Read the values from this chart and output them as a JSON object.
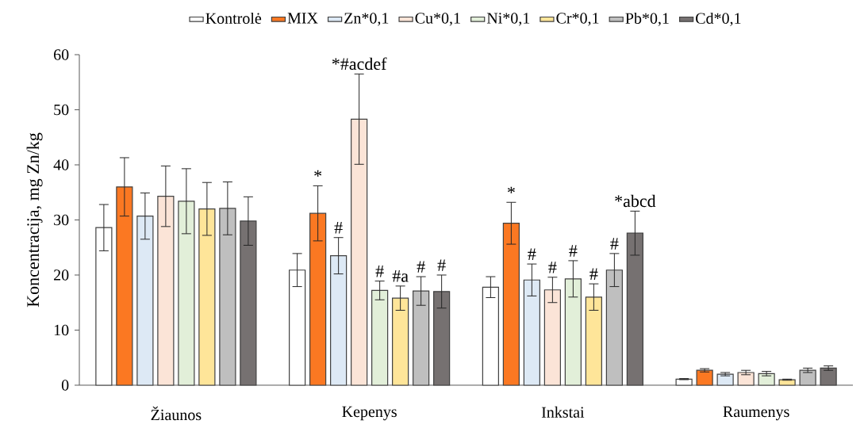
{
  "chart_data": {
    "type": "bar",
    "ylabel": "Koncentracija, mg Zn/kg",
    "categories": [
      "Žiaunos",
      "Kepenys",
      "Inkstai",
      "Raumenys"
    ],
    "series": [
      {
        "name": "Kontrolė",
        "color": "#ffffff",
        "values": [
          28.6,
          20.9,
          17.8,
          1.1
        ],
        "errors": [
          4.2,
          3.0,
          1.9,
          0.1
        ]
      },
      {
        "name": "MIX",
        "color": "#fb7822",
        "values": [
          36.0,
          31.2,
          29.4,
          2.7
        ],
        "errors": [
          5.3,
          5.0,
          3.8,
          0.3
        ],
        "value_labels": [
          null,
          "*",
          "*",
          null
        ]
      },
      {
        "name": "Zn*0,1",
        "color": "#dde9f5",
        "values": [
          30.7,
          23.5,
          19.1,
          2.0
        ],
        "errors": [
          4.2,
          3.3,
          2.9,
          0.3
        ],
        "value_labels": [
          null,
          "#",
          "#",
          null
        ]
      },
      {
        "name": "Cu*0,1",
        "color": "#fbe4d7",
        "values": [
          34.3,
          48.3,
          17.3,
          2.3
        ],
        "errors": [
          5.5,
          8.2,
          2.3,
          0.4
        ],
        "value_labels": [
          null,
          "*#acdef",
          "#",
          null
        ]
      },
      {
        "name": "Ni*0,1",
        "color": "#e2efd9",
        "values": [
          33.4,
          17.2,
          19.3,
          2.1
        ],
        "errors": [
          5.9,
          1.7,
          3.3,
          0.4
        ],
        "value_labels": [
          null,
          "#",
          "#",
          null
        ]
      },
      {
        "name": "Cr*0,1",
        "color": "#fee599",
        "values": [
          32.0,
          15.8,
          16.0,
          1.0
        ],
        "errors": [
          4.8,
          2.2,
          2.4,
          0.1
        ],
        "value_labels": [
          null,
          "#a",
          "#",
          null
        ]
      },
      {
        "name": "Pb*0,1",
        "color": "#bfbfbf",
        "values": [
          32.1,
          17.1,
          20.9,
          2.7
        ],
        "errors": [
          4.8,
          2.6,
          3.0,
          0.4
        ],
        "value_labels": [
          null,
          "#",
          "#",
          null
        ]
      },
      {
        "name": "Cd*0,1",
        "color": "#767171",
        "values": [
          29.8,
          17.0,
          27.6,
          3.1
        ],
        "errors": [
          4.4,
          3.0,
          4.0,
          0.4
        ],
        "value_labels": [
          null,
          "#",
          "*abcd",
          null
        ]
      }
    ],
    "ylim": [
      0,
      60
    ],
    "yticks": [
      0,
      10,
      20,
      30,
      40,
      50,
      60
    ],
    "legend": "top"
  }
}
